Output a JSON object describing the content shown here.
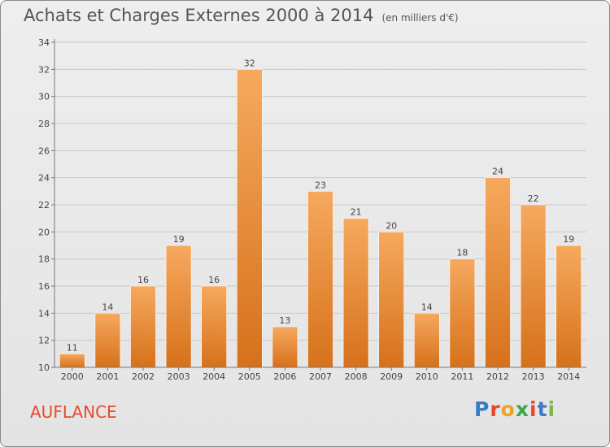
{
  "title": "Achats et Charges Externes 2000 à 2014",
  "subtitle": "(en milliers d'€)",
  "place": "AUFLANCE",
  "logo": {
    "text": "Proxiti",
    "colors": [
      "#3a7cc4",
      "#e8492c",
      "#f2a223",
      "#3aa54a",
      "#e8492c",
      "#3a7cc4",
      "#7ab648"
    ]
  },
  "colors": {
    "bar_light": "#f6a95e",
    "bar_dark": "#d6711b",
    "grid": "#c8c8c8"
  },
  "chart_data": {
    "type": "bar",
    "title": "Achats et Charges Externes 2000 à 2014",
    "subtitle": "(en milliers d'€)",
    "categories": [
      "2000",
      "2001",
      "2002",
      "2003",
      "2004",
      "2005",
      "2006",
      "2007",
      "2008",
      "2009",
      "2010",
      "2011",
      "2012",
      "2013",
      "2014"
    ],
    "values": [
      11,
      14,
      16,
      19,
      16,
      32,
      13,
      23,
      21,
      20,
      14,
      18,
      24,
      22,
      19
    ],
    "ylim": [
      10,
      34
    ],
    "yticks": [
      10,
      12,
      14,
      16,
      18,
      20,
      22,
      24,
      26,
      28,
      30,
      32,
      34
    ],
    "grid": true,
    "xlabel": "",
    "ylabel": ""
  }
}
